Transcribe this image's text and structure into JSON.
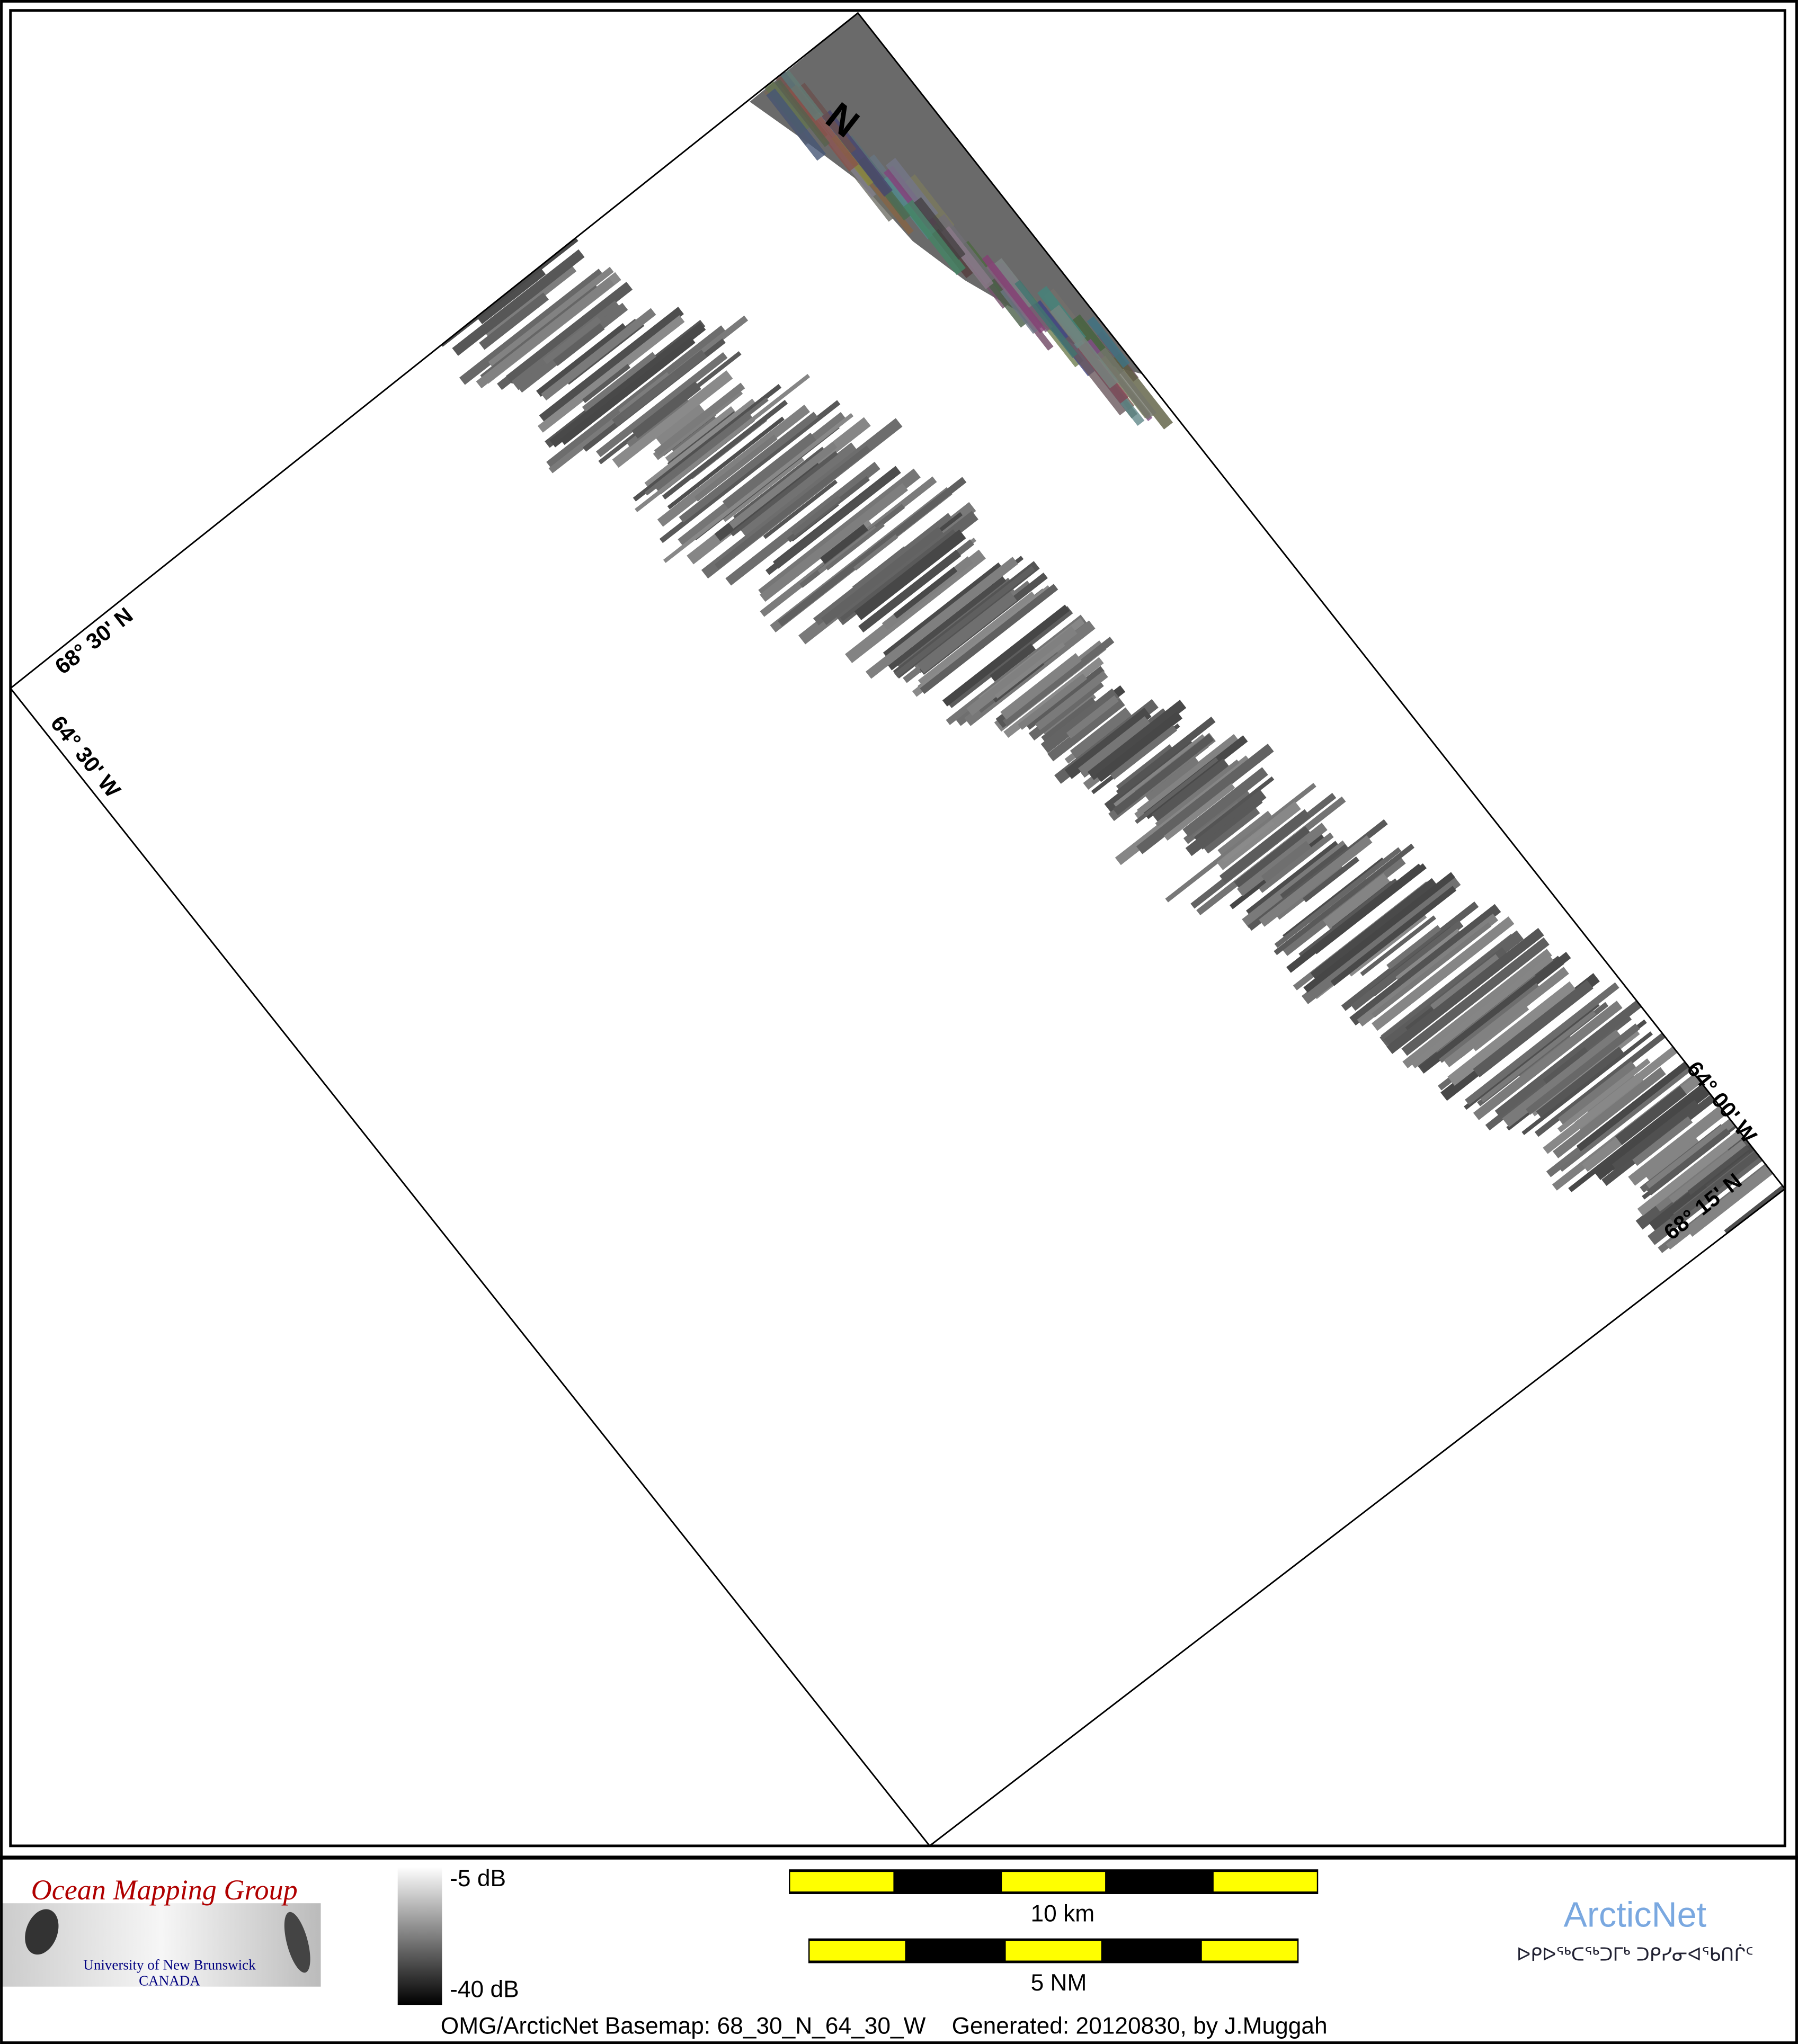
{
  "map": {
    "labels": {
      "lat_top_left": "68° 30' N",
      "lon_left": "64° 30' W",
      "lon_right": "64° 00' W",
      "lat_bottom_right": "68° 15' N"
    },
    "north_arrow": "N"
  },
  "legend": {
    "omg_logo": {
      "title": "Ocean Mapping Group",
      "line1": "University of New Brunswick",
      "line2": "CANADA"
    },
    "colorbar": {
      "max": "-5 dB",
      "min": "-40 dB",
      "colors": [
        "#ffffff",
        "#000000"
      ]
    },
    "scale_km": "10 km",
    "scale_nm": "5 NM",
    "scale_colors": [
      "#ffff00",
      "#000000"
    ],
    "arcticnet_logo": {
      "title": "ArcticNet",
      "syllabics": "ᐅᑭᐅᖅᑕᖅᑐᒥᒃ ᑐᑭᓯᓂᐊᖃᑎᒌᑦ",
      "color": "#7aa8e0"
    },
    "footer": "OMG/ArcticNet Basemap: 68_30_N_64_30_W    Generated: 20120830, by J.Muggah"
  }
}
